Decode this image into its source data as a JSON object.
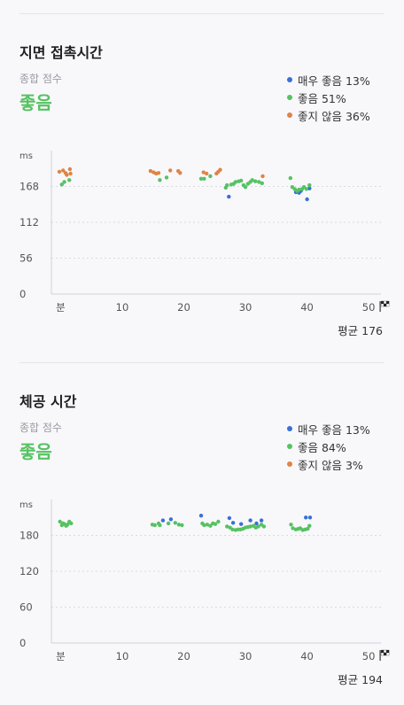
{
  "colors": {
    "very_good": "#3a6fd8",
    "good": "#56c262",
    "not_good": "#de8446",
    "grid": "#d9d9e2",
    "axis": "#cfcfd8"
  },
  "sections": [
    {
      "title": "지면 접촉시간",
      "score_label": "종합 점수",
      "score_value": "좋음",
      "legend": [
        "매우 좋음 13%",
        "좋음 51%",
        "좋지 않음 36%"
      ],
      "average": "평균 176",
      "chart_data": {
        "type": "scatter",
        "unit": "ms",
        "y_ticks": [
          "168",
          "112",
          "56",
          "0"
        ],
        "y_tick_values": [
          168,
          112,
          56,
          0
        ],
        "ylim": [
          0,
          224
        ],
        "x_ticks": [
          "분",
          "10",
          "20",
          "30",
          "40",
          "50"
        ],
        "x_tick_values": [
          0,
          10,
          20,
          30,
          40,
          50
        ],
        "xlim": [
          -1.5,
          52
        ],
        "series": [
          {
            "category": "very_good",
            "points": [
              [
                27.3,
                152
              ],
              [
                38.2,
                159
              ],
              [
                38.7,
                158
              ],
              [
                39.0,
                161
              ],
              [
                40.0,
                148
              ],
              [
                40.4,
                165
              ]
            ]
          },
          {
            "category": "good",
            "points": [
              [
                0.2,
                171
              ],
              [
                0.6,
                175
              ],
              [
                1.4,
                178
              ],
              [
                16.1,
                178
              ],
              [
                17.2,
                182
              ],
              [
                22.8,
                180
              ],
              [
                23.3,
                180
              ],
              [
                24.3,
                184
              ],
              [
                26.8,
                166
              ],
              [
                27.0,
                170
              ],
              [
                27.7,
                171
              ],
              [
                28.1,
                172
              ],
              [
                28.4,
                175
              ],
              [
                28.9,
                176
              ],
              [
                29.3,
                177
              ],
              [
                29.7,
                170
              ],
              [
                30.0,
                167
              ],
              [
                30.4,
                172
              ],
              [
                30.8,
                175
              ],
              [
                31.1,
                178
              ],
              [
                31.6,
                176
              ],
              [
                32.2,
                175
              ],
              [
                32.7,
                173
              ],
              [
                37.3,
                181
              ],
              [
                37.6,
                167
              ],
              [
                38.0,
                164
              ],
              [
                38.4,
                161
              ],
              [
                38.7,
                163
              ],
              [
                39.2,
                164
              ],
              [
                39.5,
                167
              ],
              [
                39.9,
                164
              ],
              [
                40.4,
                170
              ]
            ]
          },
          {
            "category": "not_good",
            "points": [
              [
                -0.2,
                191
              ],
              [
                0.4,
                193
              ],
              [
                0.8,
                189
              ],
              [
                1.0,
                186
              ],
              [
                1.5,
                195
              ],
              [
                1.6,
                188
              ],
              [
                14.6,
                192
              ],
              [
                15.1,
                190
              ],
              [
                15.5,
                188
              ],
              [
                15.9,
                189
              ],
              [
                17.8,
                193
              ],
              [
                19.1,
                192
              ],
              [
                19.4,
                189
              ],
              [
                23.2,
                190
              ],
              [
                23.7,
                188
              ],
              [
                25.3,
                188
              ],
              [
                25.6,
                191
              ],
              [
                25.9,
                194
              ],
              [
                32.8,
                184
              ]
            ]
          }
        ]
      }
    },
    {
      "title": "체공 시간",
      "score_label": "종합 점수",
      "score_value": "좋음",
      "legend": [
        "매우 좋음 13%",
        "좋음 84%",
        "좋지 않음 3%"
      ],
      "average": "평균 194",
      "chart_data": {
        "type": "scatter",
        "unit": "ms",
        "y_ticks": [
          "180",
          "120",
          "60",
          "0"
        ],
        "y_tick_values": [
          180,
          120,
          60,
          0
        ],
        "ylim": [
          0,
          240
        ],
        "x_ticks": [
          "분",
          "10",
          "20",
          "30",
          "40",
          "50"
        ],
        "x_tick_values": [
          0,
          10,
          20,
          30,
          40,
          50
        ],
        "xlim": [
          -1.5,
          52
        ],
        "series": [
          {
            "category": "very_good",
            "points": [
              [
                16.6,
                205
              ],
              [
                17.9,
                207
              ],
              [
                22.8,
                213
              ],
              [
                27.4,
                209
              ],
              [
                28.0,
                201
              ],
              [
                29.3,
                199
              ],
              [
                30.8,
                205
              ],
              [
                31.8,
                200
              ],
              [
                32.6,
                205
              ],
              [
                39.8,
                210
              ],
              [
                40.5,
                210
              ]
            ]
          },
          {
            "category": "good",
            "points": [
              [
                -0.1,
                203
              ],
              [
                0.2,
                197
              ],
              [
                0.4,
                200
              ],
              [
                0.6,
                199
              ],
              [
                0.9,
                196
              ],
              [
                1.1,
                198
              ],
              [
                1.4,
                203
              ],
              [
                1.7,
                200
              ],
              [
                14.9,
                198
              ],
              [
                15.3,
                197
              ],
              [
                15.9,
                200
              ],
              [
                16.1,
                197
              ],
              [
                17.5,
                200
              ],
              [
                18.6,
                201
              ],
              [
                19.2,
                198
              ],
              [
                19.7,
                197
              ],
              [
                23.0,
                200
              ],
              [
                23.3,
                197
              ],
              [
                23.8,
                198
              ],
              [
                24.3,
                196
              ],
              [
                24.7,
                200
              ],
              [
                25.1,
                199
              ],
              [
                25.6,
                203
              ],
              [
                27.0,
                195
              ],
              [
                27.5,
                193
              ],
              [
                27.9,
                190
              ],
              [
                28.4,
                189
              ],
              [
                28.8,
                190
              ],
              [
                29.2,
                190
              ],
              [
                29.6,
                191
              ],
              [
                30.0,
                193
              ],
              [
                30.4,
                194
              ],
              [
                30.8,
                195
              ],
              [
                31.3,
                196
              ],
              [
                31.7,
                193
              ],
              [
                32.1,
                195
              ],
              [
                32.6,
                198
              ],
              [
                33.0,
                195
              ],
              [
                37.4,
                198
              ],
              [
                37.7,
                192
              ],
              [
                38.2,
                190
              ],
              [
                38.6,
                191
              ],
              [
                38.9,
                192
              ],
              [
                39.3,
                189
              ],
              [
                39.7,
                190
              ],
              [
                40.1,
                191
              ],
              [
                40.4,
                196
              ]
            ]
          },
          {
            "category": "not_good",
            "points": []
          }
        ]
      }
    }
  ]
}
